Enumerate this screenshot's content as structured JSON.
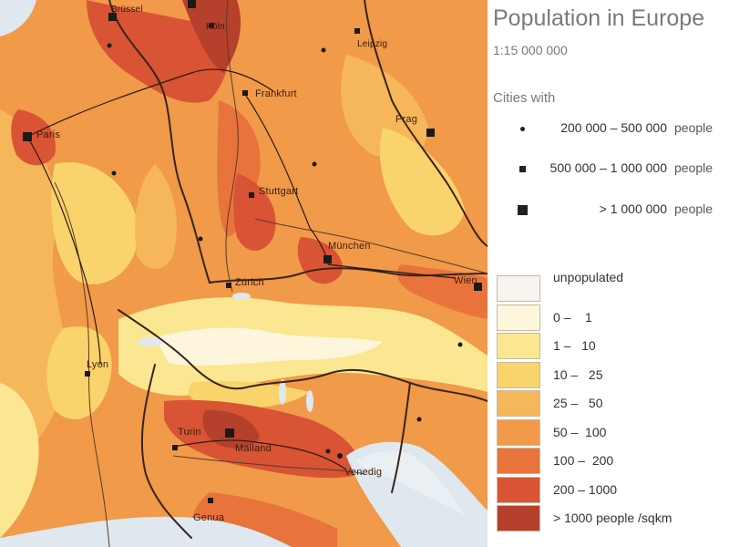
{
  "legend": {
    "title": "Population in Europe",
    "scale": "1:15 000 000",
    "cities_heading": "Cities with",
    "city_classes": [
      {
        "range": "200 000 –  500 000",
        "unit": "people",
        "symbol": "dot"
      },
      {
        "range": "500 000 – 1 000 000",
        "unit": "people",
        "symbol": "small-square"
      },
      {
        "range": "> 1 000 000",
        "unit": "people",
        "symbol": "large-square"
      }
    ],
    "density_classes": [
      {
        "label": "unpopulated",
        "color": "#f7f4ee"
      },
      {
        "label": "0 –    1",
        "color": "#fdf6dc"
      },
      {
        "label": "1 –   10",
        "color": "#fbe791"
      },
      {
        "label": "10 –   25",
        "color": "#f9d36b"
      },
      {
        "label": "25 –   50",
        "color": "#f6b65a"
      },
      {
        "label": "50 –  100",
        "color": "#f09a4a"
      },
      {
        "label": "100 –  200",
        "color": "#e8743c"
      },
      {
        "label": "200 – 1000",
        "color": "#d85434"
      },
      {
        "label": "> 1000 people /sqkm",
        "color": "#b5402c"
      }
    ]
  },
  "map": {
    "cities": [
      {
        "name": "Brüssel",
        "size": "large"
      },
      {
        "name": "Köln",
        "size": "small"
      },
      {
        "name": "Leipzig",
        "size": "small"
      },
      {
        "name": "Paris",
        "size": "large"
      },
      {
        "name": "Frankfurt",
        "size": "small"
      },
      {
        "name": "Prag",
        "size": "large"
      },
      {
        "name": "Stuttgart",
        "size": "small"
      },
      {
        "name": "München",
        "size": "large"
      },
      {
        "name": "Zürich",
        "size": "small"
      },
      {
        "name": "Wien",
        "size": "large"
      },
      {
        "name": "Lyon",
        "size": "small"
      },
      {
        "name": "Turin",
        "size": "small"
      },
      {
        "name": "Mailand",
        "size": "large"
      },
      {
        "name": "Venedig",
        "size": "dot"
      },
      {
        "name": "Genua",
        "size": "small"
      }
    ]
  }
}
